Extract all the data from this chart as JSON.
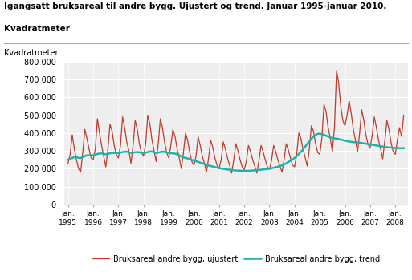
{
  "title_line1": "Igangsatt bruksareal til andre bygg. Ujustert og trend. Januar 1995-januar 2010.",
  "title_line2": "Kvadratmeter",
  "ylabel": "Kvadratmeter",
  "ylim": [
    0,
    800000
  ],
  "yticks": [
    0,
    100000,
    200000,
    300000,
    400000,
    500000,
    600000,
    700000,
    800000
  ],
  "ytick_labels": [
    "0",
    "100 000",
    "200 000",
    "300 000",
    "400 000",
    "500 000",
    "600 000",
    "700 000",
    "800 000"
  ],
  "line_color_ujustert": "#c0392b",
  "line_color_trend": "#20b2aa",
  "legend_ujustert": "Bruksareal andre bygg, ujustert",
  "legend_trend": "Bruksareal andre bygg, trend",
  "bg_color": "#ffffff",
  "plot_bg_color": "#eeeeee",
  "grid_color": "#ffffff",
  "ujustert": [
    230000,
    280000,
    390000,
    310000,
    250000,
    200000,
    180000,
    290000,
    420000,
    370000,
    310000,
    260000,
    250000,
    310000,
    480000,
    400000,
    330000,
    270000,
    210000,
    310000,
    450000,
    410000,
    330000,
    280000,
    260000,
    330000,
    490000,
    430000,
    350000,
    300000,
    230000,
    330000,
    470000,
    420000,
    340000,
    290000,
    270000,
    340000,
    500000,
    450000,
    360000,
    300000,
    240000,
    340000,
    480000,
    430000,
    350000,
    290000,
    260000,
    330000,
    420000,
    380000,
    310000,
    260000,
    200000,
    290000,
    400000,
    360000,
    290000,
    240000,
    220000,
    270000,
    380000,
    330000,
    270000,
    230000,
    180000,
    260000,
    360000,
    320000,
    260000,
    220000,
    200000,
    250000,
    350000,
    310000,
    260000,
    220000,
    175000,
    250000,
    340000,
    300000,
    250000,
    210000,
    195000,
    240000,
    330000,
    295000,
    250000,
    215000,
    175000,
    245000,
    330000,
    295000,
    250000,
    210000,
    195000,
    245000,
    330000,
    295000,
    250000,
    215000,
    180000,
    250000,
    340000,
    305000,
    260000,
    220000,
    210000,
    280000,
    400000,
    370000,
    310000,
    265000,
    215000,
    310000,
    440000,
    410000,
    340000,
    290000,
    280000,
    370000,
    560000,
    520000,
    430000,
    370000,
    295000,
    430000,
    750000,
    680000,
    550000,
    470000,
    440000,
    500000,
    580000,
    510000,
    420000,
    360000,
    295000,
    400000,
    530000,
    470000,
    390000,
    335000,
    315000,
    390000,
    490000,
    430000,
    360000,
    310000,
    255000,
    355000,
    470000,
    420000,
    345000,
    295000,
    280000,
    360000,
    430000,
    380000,
    500000
  ],
  "trend": [
    250000,
    255000,
    260000,
    265000,
    265000,
    260000,
    260000,
    265000,
    270000,
    275000,
    275000,
    275000,
    275000,
    278000,
    282000,
    285000,
    285000,
    283000,
    280000,
    282000,
    286000,
    288000,
    288000,
    288000,
    288000,
    290000,
    293000,
    295000,
    295000,
    292000,
    288000,
    290000,
    292000,
    293000,
    292000,
    290000,
    288000,
    290000,
    293000,
    296000,
    296000,
    293000,
    288000,
    290000,
    293000,
    295000,
    294000,
    291000,
    288000,
    287000,
    286000,
    284000,
    280000,
    275000,
    268000,
    263000,
    260000,
    257000,
    253000,
    249000,
    245000,
    242000,
    238000,
    234000,
    230000,
    226000,
    221000,
    218000,
    215000,
    212000,
    209000,
    206000,
    203000,
    201000,
    199000,
    197000,
    195000,
    194000,
    192000,
    191000,
    190000,
    189000,
    189000,
    188000,
    188000,
    188000,
    188000,
    189000,
    190000,
    191000,
    192000,
    193000,
    194000,
    196000,
    197000,
    198000,
    200000,
    202000,
    205000,
    208000,
    211000,
    215000,
    219000,
    224000,
    230000,
    237000,
    244000,
    252000,
    260000,
    270000,
    282000,
    294000,
    308000,
    323000,
    338000,
    353000,
    368000,
    381000,
    390000,
    395000,
    396000,
    394000,
    390000,
    385000,
    380000,
    375000,
    372000,
    370000,
    368000,
    366000,
    363000,
    360000,
    357000,
    354000,
    352000,
    350000,
    349000,
    348000,
    347000,
    345000,
    344000,
    342000,
    340000,
    338000,
    336000,
    334000,
    332000,
    330000,
    328000,
    326000,
    324000,
    322000,
    320000,
    319000,
    318000,
    317000,
    316000,
    315000,
    315000,
    315000,
    315000
  ]
}
